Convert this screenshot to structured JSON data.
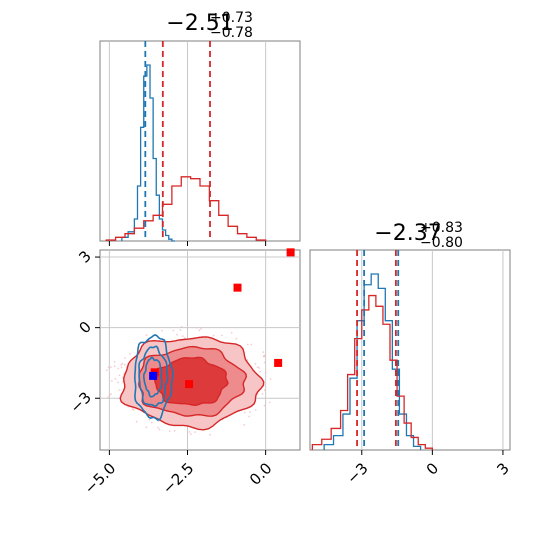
{
  "chart_data": {
    "type": "corner",
    "series_colors": {
      "blue": "#1f77b4",
      "red": "#d62728"
    },
    "panels": [
      {
        "id": "marginal-x",
        "type": "histogram",
        "title": {
          "main": "−2.51",
          "upper": "+0.73",
          "lower": "−0.78"
        },
        "xlim": [
          -5.3,
          1.1
        ],
        "xticks": [
          -5.0,
          -2.5,
          0.0
        ],
        "grid": true,
        "series": [
          {
            "color": "blue",
            "bin_edges": [
              -4.6,
              -4.4,
              -4.2,
              -4.1,
              -4.0,
              -3.9,
              -3.8,
              -3.7,
              -3.6,
              -3.5,
              -3.4,
              -3.3,
              -3.2,
              -3.1,
              -3.0,
              -2.9
            ],
            "heights": [
              0.02,
              0.05,
              0.12,
              0.3,
              0.62,
              0.9,
              0.96,
              0.78,
              0.45,
              0.25,
              0.12,
              0.06,
              0.03,
              0.01,
              0.0
            ],
            "quantiles": [
              -3.85
            ]
          },
          {
            "color": "red",
            "bin_edges": [
              -5.1,
              -4.8,
              -4.5,
              -4.2,
              -3.9,
              -3.6,
              -3.3,
              -3.0,
              -2.7,
              -2.4,
              -2.1,
              -1.8,
              -1.5,
              -1.2,
              -0.9,
              -0.6,
              -0.3,
              0.0
            ],
            "heights": [
              0.005,
              0.02,
              0.04,
              0.07,
              0.11,
              0.14,
              0.2,
              0.3,
              0.35,
              0.34,
              0.3,
              0.22,
              0.14,
              0.08,
              0.04,
              0.02,
              0.005
            ],
            "quantiles": [
              -3.29,
              -1.78
            ]
          }
        ]
      },
      {
        "id": "joint",
        "type": "contour",
        "xlim": [
          -5.3,
          1.1
        ],
        "ylim": [
          -5.2,
          3.3
        ],
        "xticks": [
          -5.0,
          -2.5,
          0.0
        ],
        "xtick_labels": [
          "−5.0",
          "−2.5",
          "0.0"
        ],
        "yticks": [
          3,
          0,
          -3
        ],
        "ytick_labels": [
          "3",
          "0",
          "−3"
        ],
        "grid": true,
        "red_contours": {
          "center": [
            -2.4,
            -2.3
          ],
          "levels": [
            {
              "rx": 2.2,
              "ry": 1.9,
              "fill": "#f7c5c6"
            },
            {
              "rx": 1.7,
              "ry": 1.45,
              "fill": "#ee8b8d"
            },
            {
              "rx": 1.15,
              "ry": 1.0,
              "fill": "#dd3a3c"
            }
          ]
        },
        "blue_contours": {
          "center": [
            -3.6,
            -2.1
          ],
          "levels": [
            {
              "rx": 0.6,
              "ry": 1.75
            },
            {
              "rx": 0.45,
              "ry": 1.25
            },
            {
              "rx": 0.28,
              "ry": 0.8
            }
          ]
        },
        "red_markers": [
          [
            0.8,
            3.2
          ],
          [
            -0.9,
            1.7
          ],
          [
            0.4,
            -1.5
          ],
          [
            -2.45,
            -2.4
          ],
          [
            -3.55,
            -1.9
          ]
        ],
        "blue_markers": [
          [
            -3.6,
            -2.05
          ]
        ]
      },
      {
        "id": "marginal-y",
        "type": "histogram",
        "title": {
          "main": "−2.37",
          "upper": "+0.83",
          "lower": "−0.80"
        },
        "xlim": [
          -5.2,
          3.3
        ],
        "xticks": [
          -3,
          0,
          3
        ],
        "xtick_labels": [
          "−3",
          "0",
          "3"
        ],
        "grid": true,
        "series": [
          {
            "color": "blue",
            "bin_edges": [
              -4.6,
              -4.2,
              -3.8,
              -3.5,
              -3.2,
              -2.9,
              -2.6,
              -2.3,
              -2.0,
              -1.7,
              -1.4,
              -1.1,
              -0.8,
              -0.5
            ],
            "heights": [
              0.03,
              0.08,
              0.2,
              0.4,
              0.72,
              0.92,
              0.98,
              0.9,
              0.72,
              0.45,
              0.2,
              0.08,
              0.02
            ],
            "quantiles": [
              -2.9,
              -1.45
            ]
          },
          {
            "color": "red",
            "bin_edges": [
              -5.1,
              -4.7,
              -4.3,
              -3.9,
              -3.6,
              -3.3,
              -3.0,
              -2.7,
              -2.4,
              -2.1,
              -1.8,
              -1.5,
              -1.2,
              -0.9,
              -0.6,
              -0.3,
              0.0
            ],
            "heights": [
              0.03,
              0.06,
              0.12,
              0.22,
              0.42,
              0.62,
              0.78,
              0.86,
              0.8,
              0.7,
              0.5,
              0.3,
              0.15,
              0.07,
              0.03,
              0.01
            ],
            "quantiles": [
              -3.2,
              -1.55
            ]
          }
        ]
      }
    ]
  }
}
